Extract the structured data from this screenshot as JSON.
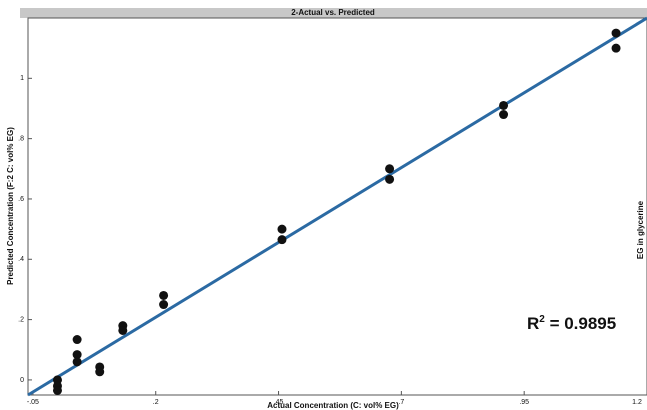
{
  "chart_data": {
    "type": "scatter",
    "title": "2-Actual vs. Predicted",
    "x_label": "Actual Concentration (C: vol% EG)",
    "y_label": "Predicted Concentration (F:2 C: vol% EG)",
    "right_label": "EG in glycerine",
    "annotation": {
      "base": "R",
      "sup": "2",
      "rest": " = 0.9895"
    },
    "x": [
      0,
      0,
      0,
      0.04,
      0.04,
      0.04,
      0.086,
      0.086,
      0.133,
      0.133,
      0.216,
      0.216,
      0.457,
      0.457,
      0.676,
      0.676,
      0.908,
      0.908,
      1.137,
      1.137
    ],
    "values": [
      0,
      -0.02,
      -0.035,
      0.134,
      0.084,
      0.06,
      0.043,
      0.027,
      0.18,
      0.164,
      0.28,
      0.25,
      0.5,
      0.465,
      0.7,
      0.665,
      0.91,
      0.88,
      1.15,
      1.1
    ],
    "color": "#111111",
    "fit": {
      "x": [
        -0.06,
        1.2
      ],
      "values": [
        -0.05,
        1.2
      ],
      "color": "#2b6aa3"
    },
    "xlim": [
      -0.06,
      1.2
    ],
    "ylim": [
      -0.05,
      1.2
    ],
    "xticks": [
      {
        "value": -0.05,
        "label": "-.05"
      },
      {
        "value": 0.2,
        "label": ".2"
      },
      {
        "value": 0.45,
        "label": ".45"
      },
      {
        "value": 0.7,
        "label": ".7"
      },
      {
        "value": 0.95,
        "label": ".95"
      },
      {
        "value": 1.2,
        "label": "1.2"
      }
    ],
    "yticks": [
      0,
      {
        "value": 0.2,
        "label": ".2"
      },
      {
        "value": 0.4,
        "label": ".4"
      },
      {
        "value": 0.6,
        "label": ".6"
      },
      {
        "value": 0.8,
        "label": ".8"
      },
      1
    ]
  }
}
